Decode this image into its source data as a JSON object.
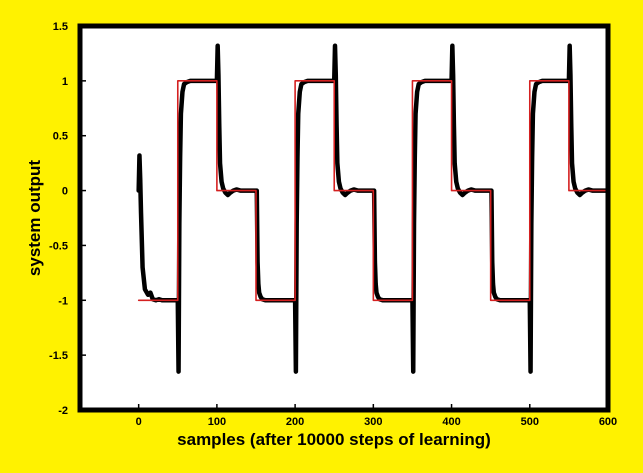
{
  "chart_data": {
    "type": "line",
    "title": "",
    "xlabel": "samples (after 10000 steps of learning)",
    "ylabel": "system output",
    "xlim": [
      -75,
      600
    ],
    "ylim": [
      -2,
      1.5
    ],
    "xticks": [
      0,
      100,
      200,
      300,
      400,
      500,
      600
    ],
    "yticks": [
      -2,
      -1.5,
      -1,
      -0.5,
      0,
      0.5,
      1,
      1.5
    ],
    "xtick_labels": [
      "0",
      "100",
      "200",
      "300",
      "400",
      "500",
      "600"
    ],
    "ytick_labels": [
      "-2",
      "-1.5",
      "-1",
      "-0.5",
      "0",
      "0.5",
      "1",
      "1.5"
    ],
    "grid": false,
    "background": "#fff200",
    "plot_background": "#ffffff",
    "series": [
      {
        "color": "#d42020",
        "description": "reference square wave",
        "x": [
          0,
          50,
          50,
          100,
          100,
          150,
          150,
          200,
          200,
          250,
          250,
          300,
          300,
          350,
          350,
          400,
          400,
          450,
          450,
          500,
          500,
          550,
          550,
          600
        ],
        "y": [
          -1,
          -1,
          1,
          1,
          0,
          0,
          -1,
          -1,
          1,
          1,
          0,
          0,
          -1,
          -1,
          1,
          1,
          0,
          0,
          -1,
          -1,
          1,
          1,
          0,
          0
        ]
      },
      {
        "color": "#000000",
        "description": "system output",
        "x": [
          0,
          1,
          2,
          3,
          5,
          8,
          12,
          15,
          18,
          22,
          26,
          30,
          35,
          40,
          45,
          49,
          50,
          51,
          52,
          53,
          54,
          56,
          58,
          62,
          66,
          70,
          75,
          80,
          90,
          99,
          100,
          101,
          102,
          103,
          104,
          106,
          108,
          111,
          114,
          117,
          121,
          125,
          130,
          140,
          149,
          150,
          151,
          152,
          153,
          154,
          156,
          158,
          162,
          166,
          170,
          175,
          180,
          190,
          199,
          200,
          201,
          202,
          203,
          204,
          206,
          208,
          212,
          216,
          220,
          225,
          230,
          240,
          249,
          250,
          251,
          252,
          253,
          254,
          256,
          258,
          261,
          264,
          267,
          271,
          275,
          280,
          290,
          299,
          300,
          301,
          302,
          303,
          304,
          306,
          308,
          312,
          316,
          320,
          325,
          330,
          340,
          349,
          350,
          351,
          352,
          353,
          354,
          356,
          358,
          362,
          366,
          370,
          375,
          380,
          390,
          399,
          400,
          401,
          402,
          403,
          404,
          406,
          408,
          411,
          414,
          417,
          421,
          425,
          430,
          440,
          449,
          450,
          451,
          452,
          453,
          454,
          456,
          458,
          462,
          466,
          470,
          475,
          480,
          490,
          499,
          500,
          501,
          502,
          503,
          504,
          506,
          508,
          512,
          516,
          520,
          525,
          530,
          540,
          549,
          550,
          551,
          552,
          553,
          554,
          556,
          558,
          561,
          564,
          567,
          571,
          575,
          580,
          590,
          600
        ],
        "y": [
          0,
          0.32,
          0.1,
          -0.2,
          -0.7,
          -0.9,
          -0.95,
          -0.93,
          -0.99,
          -1.0,
          -0.99,
          -1.0,
          -1.0,
          -1.0,
          -1.0,
          -1.0,
          -1.0,
          -1.65,
          -0.3,
          0.3,
          0.7,
          0.9,
          0.97,
          0.99,
          1.0,
          1.0,
          1.0,
          1.0,
          1.0,
          1.0,
          1.0,
          1.32,
          1.05,
          0.6,
          0.25,
          0.08,
          0.02,
          -0.02,
          -0.04,
          -0.02,
          0.0,
          0.01,
          0.0,
          0.0,
          0.0,
          0.0,
          0.0,
          -0.65,
          -0.85,
          -0.93,
          -0.97,
          -0.99,
          -1.0,
          -1.0,
          -1.0,
          -1.0,
          -1.0,
          -1.0,
          -1.0,
          -1.0,
          -1.65,
          -0.3,
          0.3,
          0.7,
          0.9,
          0.97,
          0.99,
          1.0,
          1.0,
          1.0,
          1.0,
          1.0,
          1.0,
          1.0,
          1.32,
          1.05,
          0.6,
          0.25,
          0.08,
          0.02,
          -0.02,
          -0.04,
          -0.02,
          0.0,
          0.01,
          0.0,
          0.0,
          0.0,
          0.0,
          0.0,
          -0.65,
          -0.85,
          -0.93,
          -0.97,
          -0.99,
          -1.0,
          -1.0,
          -1.0,
          -1.0,
          -1.0,
          -1.0,
          -1.0,
          -1.0,
          -1.65,
          -0.3,
          0.3,
          0.7,
          0.9,
          0.97,
          0.99,
          1.0,
          1.0,
          1.0,
          1.0,
          1.0,
          1.0,
          1.0,
          1.32,
          1.05,
          0.6,
          0.25,
          0.08,
          0.02,
          -0.02,
          -0.04,
          -0.02,
          0.0,
          0.01,
          0.0,
          0.0,
          0.0,
          0.0,
          0.0,
          -0.65,
          -0.85,
          -0.93,
          -0.97,
          -0.99,
          -1.0,
          -1.0,
          -1.0,
          -1.0,
          -1.0,
          -1.0,
          -1.0,
          -1.0,
          -1.65,
          -0.3,
          0.3,
          0.7,
          0.9,
          0.97,
          0.99,
          1.0,
          1.0,
          1.0,
          1.0,
          1.0,
          1.0,
          1.0,
          1.32,
          1.05,
          0.6,
          0.25,
          0.08,
          0.02,
          -0.02,
          -0.04,
          -0.02,
          0.0,
          0.01,
          0.0,
          0.0,
          0.0
        ]
      }
    ]
  }
}
